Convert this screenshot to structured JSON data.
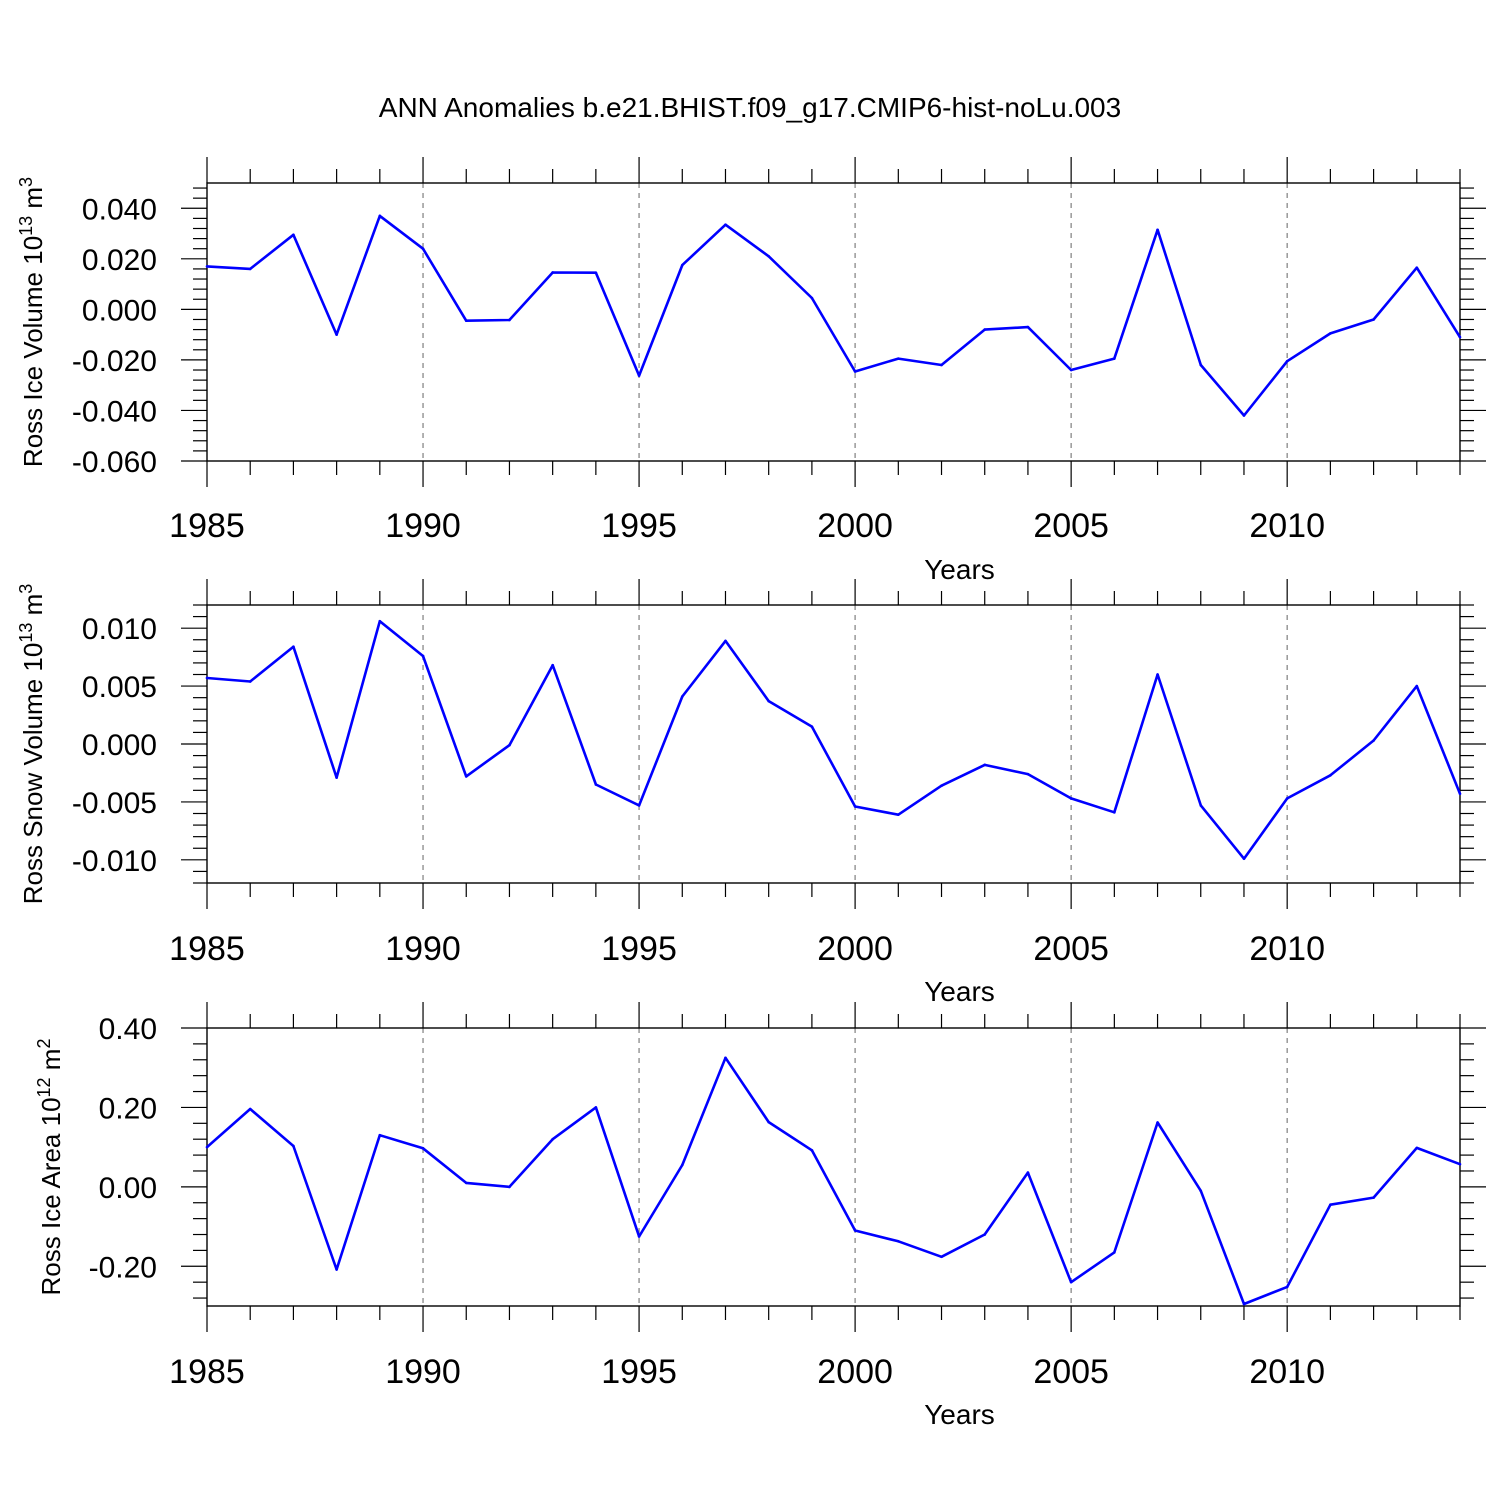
{
  "title": "ANN Anomalies b.e21.BHIST.f09_g17.CMIP6-hist-noLu.003",
  "line_color": "#0000ff",
  "chart_data": [
    {
      "type": "line",
      "ylabel": "Ross Ice Volume",
      "yunit_base": "10",
      "yunit_exp": "13",
      "yunit_unit": "m",
      "yunit_unit_exp": "3",
      "xlabel": "Years",
      "xlim": [
        1985,
        2014
      ],
      "ylim": [
        -0.06,
        0.05
      ],
      "xticks": [
        "1985",
        "1990",
        "1995",
        "2000",
        "2005",
        "2010"
      ],
      "yticks": [
        "0.040",
        "0.020",
        "0.000",
        "-0.020",
        "-0.040",
        "-0.060"
      ],
      "x": [
        1985,
        1986,
        1987,
        1988,
        1989,
        1990,
        1991,
        1992,
        1993,
        1994,
        1995,
        1996,
        1997,
        1998,
        1999,
        2000,
        2001,
        2002,
        2003,
        2004,
        2005,
        2006,
        2007,
        2008,
        2009,
        2010,
        2011,
        2012,
        2013,
        2014
      ],
      "values": [
        0.017,
        0.016,
        0.0295,
        -0.01,
        0.037,
        0.024,
        -0.0045,
        -0.0042,
        0.0146,
        0.0145,
        -0.0262,
        0.0175,
        0.0335,
        0.021,
        0.0045,
        -0.0246,
        -0.0195,
        -0.022,
        -0.008,
        -0.007,
        -0.024,
        -0.0195,
        0.0315,
        -0.022,
        -0.042,
        -0.0205,
        -0.0095,
        -0.004,
        0.0165,
        -0.011
      ]
    },
    {
      "type": "line",
      "ylabel": "Ross Snow Volume",
      "yunit_base": "10",
      "yunit_exp": "13",
      "yunit_unit": "m",
      "yunit_unit_exp": "3",
      "xlabel": "Years",
      "xlim": [
        1985,
        2014
      ],
      "ylim": [
        -0.012,
        0.012
      ],
      "xticks": [
        "1985",
        "1990",
        "1995",
        "2000",
        "2005",
        "2010"
      ],
      "yticks": [
        "0.010",
        "0.005",
        "0.000",
        "-0.005",
        "-0.010"
      ],
      "x": [
        1985,
        1986,
        1987,
        1988,
        1989,
        1990,
        1991,
        1992,
        1993,
        1994,
        1995,
        1996,
        1997,
        1998,
        1999,
        2000,
        2001,
        2002,
        2003,
        2004,
        2005,
        2006,
        2007,
        2008,
        2009,
        2010,
        2011,
        2012,
        2013,
        2014
      ],
      "values": [
        0.0057,
        0.0054,
        0.0084,
        -0.0029,
        0.0106,
        0.0076,
        -0.0028,
        -0.0001,
        0.0068,
        -0.0035,
        -0.0053,
        0.0041,
        0.0089,
        0.0037,
        0.0015,
        -0.0054,
        -0.0061,
        -0.0036,
        -0.0018,
        -0.0026,
        -0.0047,
        -0.0059,
        0.006,
        -0.0053,
        -0.0099,
        -0.0047,
        -0.0027,
        0.0003,
        0.005,
        -0.0043
      ]
    },
    {
      "type": "line",
      "ylabel": "Ross Ice Area",
      "yunit_base": "10",
      "yunit_exp": "12",
      "yunit_unit": "m",
      "yunit_unit_exp": "2",
      "xlabel": "Years",
      "xlim": [
        1985,
        2014
      ],
      "ylim": [
        -0.3,
        0.4
      ],
      "xticks": [
        "1985",
        "1990",
        "1995",
        "2000",
        "2005",
        "2010"
      ],
      "yticks": [
        "0.40",
        "0.20",
        "0.00",
        "-0.20"
      ],
      "x": [
        1985,
        1986,
        1987,
        1988,
        1989,
        1990,
        1991,
        1992,
        1993,
        1994,
        1995,
        1996,
        1997,
        1998,
        1999,
        2000,
        2001,
        2002,
        2003,
        2004,
        2005,
        2006,
        2007,
        2008,
        2009,
        2010,
        2011,
        2012,
        2013,
        2014
      ],
      "values": [
        0.1,
        0.196,
        0.103,
        -0.208,
        0.13,
        0.097,
        0.01,
        0.0,
        0.12,
        0.2,
        -0.125,
        0.055,
        0.325,
        0.163,
        0.092,
        -0.11,
        -0.137,
        -0.176,
        -0.12,
        0.036,
        -0.24,
        -0.165,
        0.162,
        -0.01,
        -0.295,
        -0.252,
        -0.045,
        -0.027,
        0.098,
        0.057
      ]
    }
  ]
}
